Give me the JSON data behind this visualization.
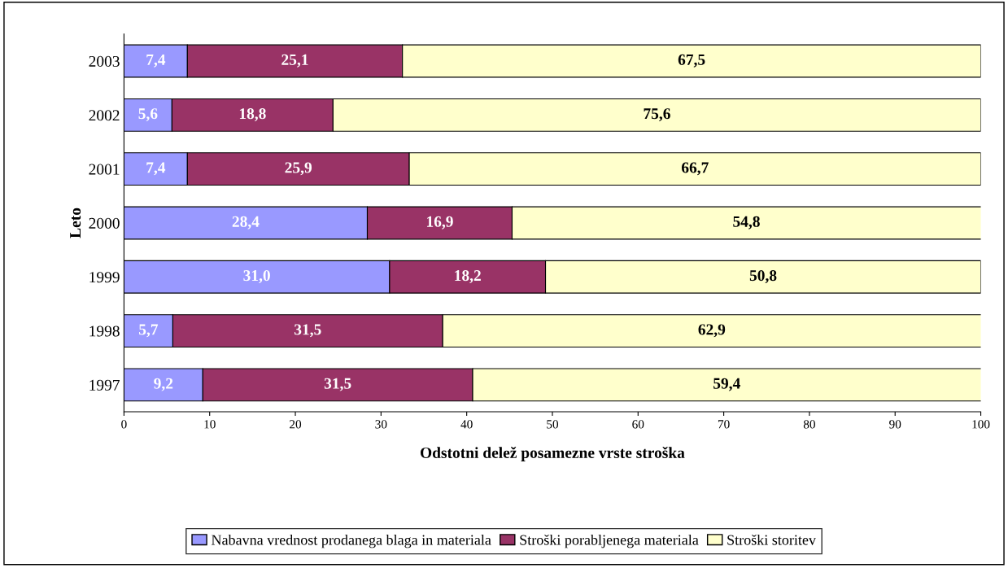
{
  "chart_data": {
    "type": "bar",
    "orientation": "horizontal",
    "stacked": true,
    "categories": [
      "2003",
      "2002",
      "2001",
      "2000",
      "1999",
      "1998",
      "1997"
    ],
    "xlabel": "Odstotni delež posamezne vrste stroška",
    "ylabel": "Leto",
    "xlim": [
      0,
      100
    ],
    "xticks": [
      0,
      10,
      20,
      30,
      40,
      50,
      60,
      70,
      80,
      90,
      100
    ],
    "grid": false,
    "legend": "bottom",
    "series": [
      {
        "name": "Nabavna vrednost prodanega blaga in materiala",
        "color": "#9999ff",
        "values": [
          7.4,
          5.6,
          7.4,
          28.4,
          31.0,
          5.7,
          9.2
        ],
        "value_labels": [
          "7,4",
          "5,6",
          "7,4",
          "28,4",
          "31,0",
          "5,7",
          "9,2"
        ]
      },
      {
        "name": "Stroški porabljenega materiala",
        "color": "#993366",
        "values": [
          25.1,
          18.8,
          25.9,
          16.9,
          18.2,
          31.5,
          31.5
        ],
        "value_labels": [
          "25,1",
          "18,8",
          "25,9",
          "16,9",
          "18,2",
          "31,5",
          "31,5"
        ]
      },
      {
        "name": "Stroški storitev",
        "color": "#ffffcc",
        "values": [
          67.5,
          75.6,
          66.7,
          54.8,
          50.8,
          62.9,
          59.4
        ],
        "value_labels": [
          "67,5",
          "75,6",
          "66,7",
          "54,8",
          "50,8",
          "62,9",
          "59,4"
        ]
      }
    ]
  }
}
